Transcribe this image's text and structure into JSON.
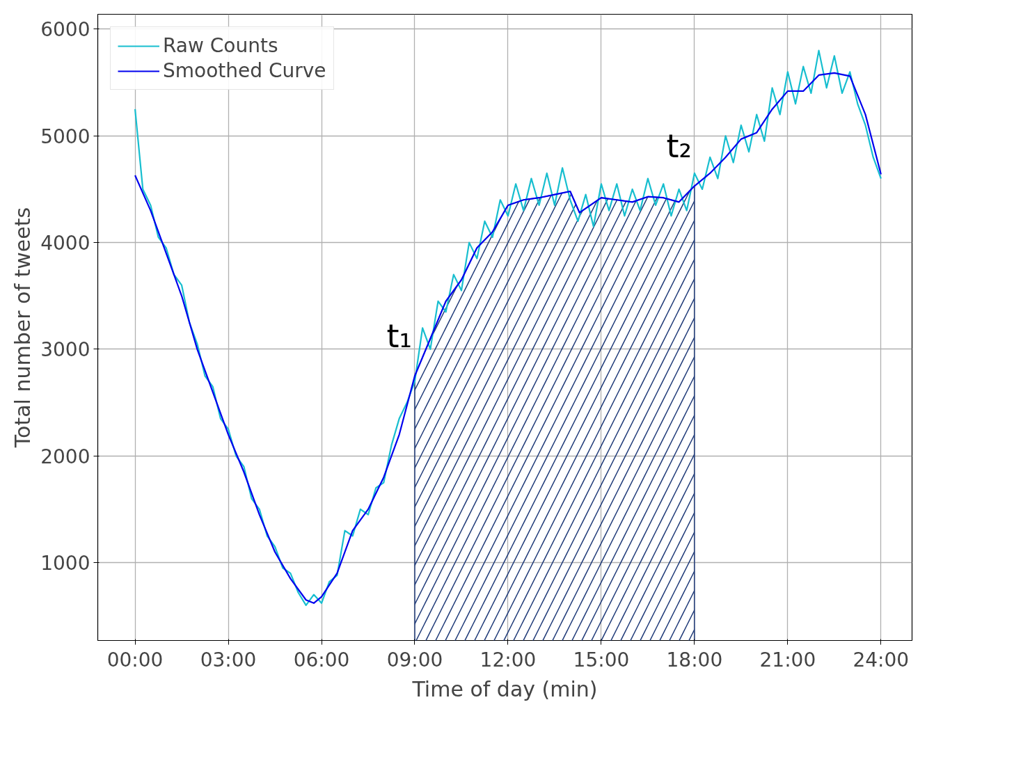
{
  "chart_data": {
    "type": "line",
    "xlabel": "Time of day (min)",
    "ylabel": "Total number of tweets",
    "xlim": [
      -1.2,
      25
    ],
    "ylim": [
      270,
      6140
    ],
    "xticks": [
      {
        "value": 0,
        "label": "00:00"
      },
      {
        "value": 3,
        "label": "03:00"
      },
      {
        "value": 6,
        "label": "06:00"
      },
      {
        "value": 9,
        "label": "09:00"
      },
      {
        "value": 12,
        "label": "12:00"
      },
      {
        "value": 15,
        "label": "15:00"
      },
      {
        "value": 18,
        "label": "18:00"
      },
      {
        "value": 21,
        "label": "21:00"
      },
      {
        "value": 24,
        "label": "24:00"
      }
    ],
    "yticks": [
      1000,
      2000,
      3000,
      4000,
      5000,
      6000
    ],
    "grid": true,
    "legend": "top left",
    "marker": "none",
    "line_style": "solid",
    "series": [
      {
        "type": "area",
        "color": "#1f3a78",
        "x": [
          9,
          9.5,
          10,
          10.5,
          11,
          11.5,
          12,
          12.5,
          13,
          13.5,
          14,
          14.3,
          15,
          15.5,
          16,
          16.5,
          17,
          17.5,
          18
        ],
        "values": [
          2750,
          3100,
          3450,
          3650,
          3950,
          4100,
          4350,
          4400,
          4420,
          4450,
          4480,
          4280,
          4420,
          4400,
          4380,
          4430,
          4420,
          4380,
          4530
        ]
      },
      {
        "name": "Raw Counts",
        "color": "#17becf",
        "x": [
          0,
          0.25,
          0.5,
          0.75,
          1,
          1.25,
          1.5,
          1.75,
          2,
          2.25,
          2.5,
          2.75,
          3,
          3.25,
          3.5,
          3.75,
          4,
          4.25,
          4.5,
          4.75,
          5,
          5.25,
          5.5,
          5.75,
          6,
          6.25,
          6.5,
          6.75,
          7,
          7.25,
          7.5,
          7.75,
          8,
          8.25,
          8.5,
          8.75,
          9,
          9.25,
          9.5,
          9.75,
          10,
          10.25,
          10.5,
          10.75,
          11,
          11.25,
          11.5,
          11.75,
          12,
          12.25,
          12.5,
          12.75,
          13,
          13.25,
          13.5,
          13.75,
          14,
          14.25,
          14.5,
          14.75,
          15,
          15.25,
          15.5,
          15.75,
          16,
          16.25,
          16.5,
          16.75,
          17,
          17.25,
          17.5,
          17.75,
          18,
          18.25,
          18.5,
          18.75,
          19,
          19.25,
          19.5,
          19.75,
          20,
          20.25,
          20.5,
          20.75,
          21,
          21.25,
          21.5,
          21.75,
          22,
          22.25,
          22.5,
          22.75,
          23,
          23.25,
          23.5,
          23.75,
          24
        ],
        "values": [
          5250,
          4500,
          4350,
          4050,
          3950,
          3700,
          3600,
          3250,
          3050,
          2750,
          2650,
          2350,
          2250,
          2000,
          1900,
          1600,
          1500,
          1250,
          1150,
          950,
          900,
          720,
          600,
          700,
          620,
          820,
          880,
          1300,
          1250,
          1500,
          1450,
          1700,
          1750,
          2100,
          2350,
          2500,
          2700,
          3200,
          3000,
          3450,
          3350,
          3700,
          3550,
          4000,
          3850,
          4200,
          4050,
          4400,
          4250,
          4550,
          4300,
          4600,
          4350,
          4650,
          4350,
          4700,
          4400,
          4200,
          4450,
          4150,
          4550,
          4300,
          4550,
          4250,
          4500,
          4300,
          4600,
          4350,
          4550,
          4250,
          4500,
          4300,
          4650,
          4500,
          4800,
          4600,
          5000,
          4750,
          5100,
          4850,
          5200,
          4950,
          5450,
          5200,
          5600,
          5300,
          5650,
          5400,
          5800,
          5450,
          5750,
          5400,
          5600,
          5300,
          5100,
          4800,
          4600
        ]
      },
      {
        "name": "Smoothed Curve",
        "color": "#0000ee",
        "x": [
          0,
          0.5,
          1,
          1.5,
          2,
          2.5,
          3,
          3.5,
          4,
          4.5,
          5,
          5.5,
          5.75,
          6,
          6.5,
          7,
          7.5,
          8,
          8.5,
          9,
          9.5,
          10,
          10.5,
          11,
          11.5,
          12,
          12.5,
          13,
          13.5,
          14,
          14.3,
          15,
          15.5,
          16,
          16.5,
          17,
          17.5,
          18,
          18.5,
          19,
          19.5,
          20,
          20.5,
          21,
          21.5,
          22,
          22.5,
          23,
          23.5,
          24
        ],
        "values": [
          4630,
          4300,
          3900,
          3500,
          3000,
          2600,
          2200,
          1850,
          1450,
          1100,
          850,
          650,
          620,
          680,
          900,
          1300,
          1500,
          1800,
          2200,
          2750,
          3100,
          3450,
          3650,
          3950,
          4100,
          4350,
          4400,
          4420,
          4450,
          4480,
          4280,
          4420,
          4400,
          4380,
          4430,
          4420,
          4380,
          4530,
          4650,
          4800,
          4970,
          5030,
          5250,
          5420,
          5420,
          5570,
          5590,
          5560,
          5200,
          4640
        ]
      }
    ],
    "annotations": [
      {
        "text": "t₁",
        "x": 9,
        "y": 2750
      },
      {
        "text": "t₂",
        "x": 18,
        "y": 4530
      }
    ]
  }
}
